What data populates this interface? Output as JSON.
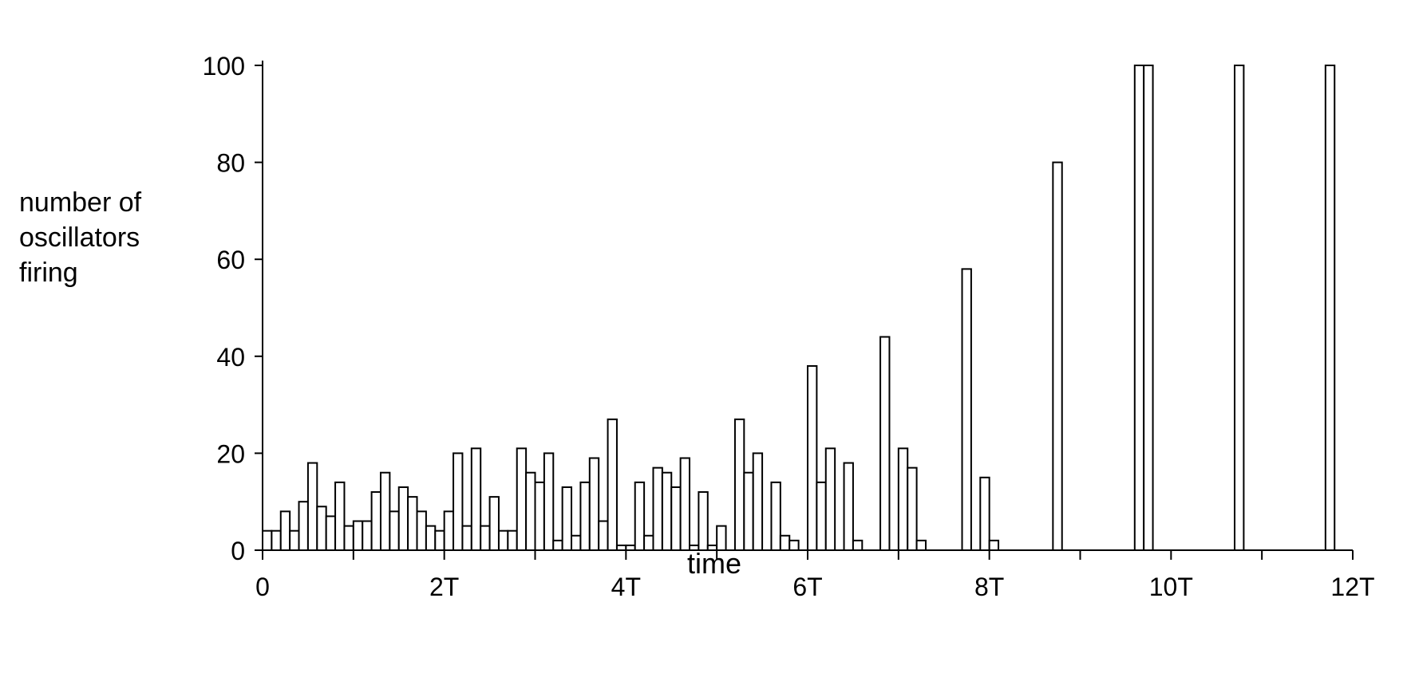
{
  "chart_data": {
    "type": "bar",
    "ylabel_lines": [
      "number of",
      "oscillators",
      "firing"
    ],
    "xlabel": "time",
    "xlim": [
      0,
      12
    ],
    "ylim": [
      0,
      100
    ],
    "x_unit": "T",
    "bin_width": 0.1,
    "y_ticks": [
      {
        "value": 0,
        "label": "0"
      },
      {
        "value": 20,
        "label": "20"
      },
      {
        "value": 40,
        "label": "40"
      },
      {
        "value": 60,
        "label": "60"
      },
      {
        "value": 80,
        "label": "80"
      },
      {
        "value": 100,
        "label": "100"
      }
    ],
    "x_ticks": [
      {
        "value": 0,
        "label": "0"
      },
      {
        "value": 2,
        "label": "2T"
      },
      {
        "value": 4,
        "label": "4T"
      },
      {
        "value": 6,
        "label": "6T"
      },
      {
        "value": 8,
        "label": "8T"
      },
      {
        "value": 10,
        "label": "10T"
      },
      {
        "value": 12,
        "label": "12T"
      }
    ],
    "x_minor_ticks": [
      1,
      3,
      5,
      7,
      9,
      11
    ],
    "bars": [
      {
        "x": 0.0,
        "y": 4
      },
      {
        "x": 0.1,
        "y": 4
      },
      {
        "x": 0.2,
        "y": 8
      },
      {
        "x": 0.3,
        "y": 4
      },
      {
        "x": 0.4,
        "y": 10
      },
      {
        "x": 0.5,
        "y": 18
      },
      {
        "x": 0.6,
        "y": 9
      },
      {
        "x": 0.7,
        "y": 7
      },
      {
        "x": 0.8,
        "y": 14
      },
      {
        "x": 0.9,
        "y": 5
      },
      {
        "x": 1.0,
        "y": 6
      },
      {
        "x": 1.1,
        "y": 6
      },
      {
        "x": 1.2,
        "y": 12
      },
      {
        "x": 1.3,
        "y": 16
      },
      {
        "x": 1.4,
        "y": 8
      },
      {
        "x": 1.5,
        "y": 13
      },
      {
        "x": 1.6,
        "y": 11
      },
      {
        "x": 1.7,
        "y": 8
      },
      {
        "x": 1.8,
        "y": 5
      },
      {
        "x": 1.9,
        "y": 4
      },
      {
        "x": 2.0,
        "y": 8
      },
      {
        "x": 2.1,
        "y": 20
      },
      {
        "x": 2.2,
        "y": 5
      },
      {
        "x": 2.3,
        "y": 21
      },
      {
        "x": 2.4,
        "y": 5
      },
      {
        "x": 2.5,
        "y": 11
      },
      {
        "x": 2.6,
        "y": 4
      },
      {
        "x": 2.7,
        "y": 4
      },
      {
        "x": 2.8,
        "y": 21
      },
      {
        "x": 2.9,
        "y": 16
      },
      {
        "x": 3.0,
        "y": 14
      },
      {
        "x": 3.1,
        "y": 20
      },
      {
        "x": 3.2,
        "y": 2
      },
      {
        "x": 3.3,
        "y": 13
      },
      {
        "x": 3.4,
        "y": 3
      },
      {
        "x": 3.5,
        "y": 14
      },
      {
        "x": 3.6,
        "y": 19
      },
      {
        "x": 3.7,
        "y": 6
      },
      {
        "x": 3.8,
        "y": 27
      },
      {
        "x": 3.9,
        "y": 1
      },
      {
        "x": 4.0,
        "y": 1
      },
      {
        "x": 4.1,
        "y": 14
      },
      {
        "x": 4.2,
        "y": 3
      },
      {
        "x": 4.3,
        "y": 17
      },
      {
        "x": 4.4,
        "y": 16
      },
      {
        "x": 4.5,
        "y": 13
      },
      {
        "x": 4.6,
        "y": 19
      },
      {
        "x": 4.7,
        "y": 1
      },
      {
        "x": 4.8,
        "y": 12
      },
      {
        "x": 4.9,
        "y": 1
      },
      {
        "x": 5.0,
        "y": 5
      },
      {
        "x": 5.2,
        "y": 27
      },
      {
        "x": 5.3,
        "y": 16
      },
      {
        "x": 5.4,
        "y": 20
      },
      {
        "x": 5.6,
        "y": 14
      },
      {
        "x": 5.7,
        "y": 3
      },
      {
        "x": 5.8,
        "y": 2
      },
      {
        "x": 6.0,
        "y": 38
      },
      {
        "x": 6.1,
        "y": 14
      },
      {
        "x": 6.2,
        "y": 21
      },
      {
        "x": 6.4,
        "y": 18
      },
      {
        "x": 6.5,
        "y": 2
      },
      {
        "x": 6.8,
        "y": 44
      },
      {
        "x": 7.0,
        "y": 21
      },
      {
        "x": 7.1,
        "y": 17
      },
      {
        "x": 7.2,
        "y": 2
      },
      {
        "x": 7.7,
        "y": 58
      },
      {
        "x": 7.9,
        "y": 15
      },
      {
        "x": 8.0,
        "y": 2
      },
      {
        "x": 8.7,
        "y": 80
      },
      {
        "x": 9.6,
        "y": 100
      },
      {
        "x": 9.7,
        "y": 100
      },
      {
        "x": 10.7,
        "y": 100
      },
      {
        "x": 11.7,
        "y": 100
      }
    ]
  }
}
